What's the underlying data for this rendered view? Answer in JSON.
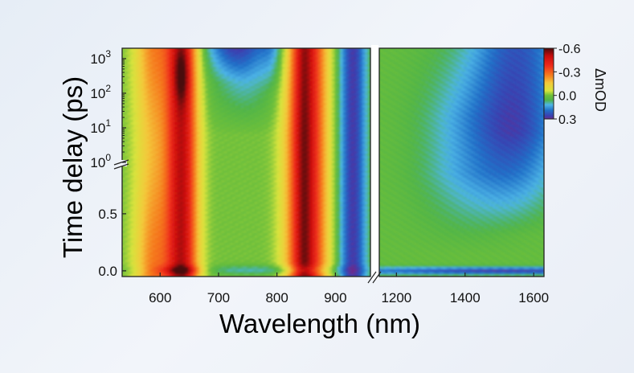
{
  "chart_data": {
    "type": "heatmap",
    "xlabel": "Wavelength (nm)",
    "ylabel": "Time delay (ps)",
    "x_range_left": [
      535,
      960
    ],
    "x_range_right": [
      1150,
      1630
    ],
    "x_ticks_left": [
      {
        "value": 600,
        "label": "600"
      },
      {
        "value": 700,
        "label": "700"
      },
      {
        "value": 800,
        "label": "800"
      },
      {
        "value": 900,
        "label": "900"
      }
    ],
    "x_ticks_right": [
      {
        "value": 1200,
        "label": "1200"
      },
      {
        "value": 1400,
        "label": "1400"
      },
      {
        "value": 1600,
        "label": "1600"
      }
    ],
    "y_linear_range": [
      -0.05,
      0.95
    ],
    "y_log_range": [
      1,
      2000
    ],
    "y_ticks_linear": [
      {
        "value": 0.0,
        "label": "0.0"
      },
      {
        "value": 0.5,
        "label": "0.5"
      }
    ],
    "y_ticks_log": [
      {
        "value": 1,
        "base": "10",
        "exp": "0"
      },
      {
        "value": 10,
        "base": "10",
        "exp": "1"
      },
      {
        "value": 100,
        "base": "10",
        "exp": "2"
      },
      {
        "value": 1000,
        "base": "10",
        "exp": "3"
      }
    ],
    "colorbar": {
      "title": "ΔmOD",
      "range": [
        -0.6,
        0.3
      ],
      "ticks": [
        {
          "value": -0.6,
          "label": "-0.6"
        },
        {
          "value": -0.3,
          "label": "-0.3"
        },
        {
          "value": 0.0,
          "label": "0.0"
        },
        {
          "value": 0.3,
          "label": "0.3"
        }
      ],
      "stops": [
        {
          "value": -0.6,
          "color": "#4a0a0a"
        },
        {
          "value": -0.5,
          "color": "#c80c0c"
        },
        {
          "value": -0.38,
          "color": "#ee2a1a"
        },
        {
          "value": -0.26,
          "color": "#f57a1e"
        },
        {
          "value": -0.16,
          "color": "#f4c83a"
        },
        {
          "value": -0.06,
          "color": "#d7e43c"
        },
        {
          "value": 0.0,
          "color": "#6fc03a"
        },
        {
          "value": 0.06,
          "color": "#4fb448"
        },
        {
          "value": 0.12,
          "color": "#4db5e6"
        },
        {
          "value": 0.19,
          "color": "#2170c8"
        },
        {
          "value": 0.26,
          "color": "#3a3fb0"
        },
        {
          "value": 0.3,
          "color": "#6a2b8c"
        }
      ]
    },
    "axis_break": "x-axis break between 960 nm and 1150 nm; y-axis break at 1 ps (linear below, log above)"
  }
}
